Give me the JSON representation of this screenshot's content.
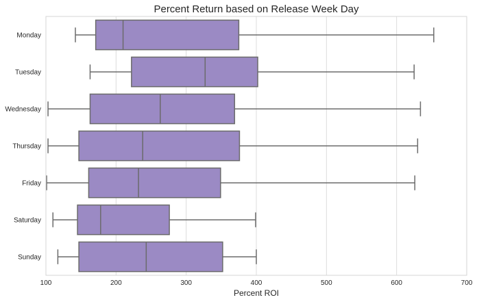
{
  "chart_data": {
    "type": "boxplot",
    "orientation": "horizontal",
    "title": "Percent Return based on Release Week Day",
    "xlabel": "Percent ROI",
    "ylabel": "",
    "xlim": [
      100,
      700
    ],
    "xticks": [
      100,
      200,
      300,
      400,
      500,
      600,
      700
    ],
    "grid": "vertical",
    "box_color": "#9b8ac4",
    "line_color": "#6b6b6b",
    "categories": [
      "Monday",
      "Tuesday",
      "Wednesday",
      "Thursday",
      "Friday",
      "Saturday",
      "Sunday"
    ],
    "boxes": [
      {
        "label": "Monday",
        "whisker_low": 142,
        "q1": 171,
        "median": 210,
        "q3": 375,
        "whisker_high": 653
      },
      {
        "label": "Tuesday",
        "whisker_low": 163,
        "q1": 222,
        "median": 327,
        "q3": 402,
        "whisker_high": 625
      },
      {
        "label": "Wednesday",
        "whisker_low": 103,
        "q1": 163,
        "median": 263,
        "q3": 369,
        "whisker_high": 634
      },
      {
        "label": "Thursday",
        "whisker_low": 103,
        "q1": 147,
        "median": 238,
        "q3": 376,
        "whisker_high": 630
      },
      {
        "label": "Friday",
        "whisker_low": 101,
        "q1": 161,
        "median": 232,
        "q3": 349,
        "whisker_high": 626
      },
      {
        "label": "Saturday",
        "whisker_low": 110,
        "q1": 145,
        "median": 178,
        "q3": 276,
        "whisker_high": 399
      },
      {
        "label": "Sunday",
        "whisker_low": 117,
        "q1": 147,
        "median": 243,
        "q3": 352,
        "whisker_high": 400
      }
    ]
  }
}
